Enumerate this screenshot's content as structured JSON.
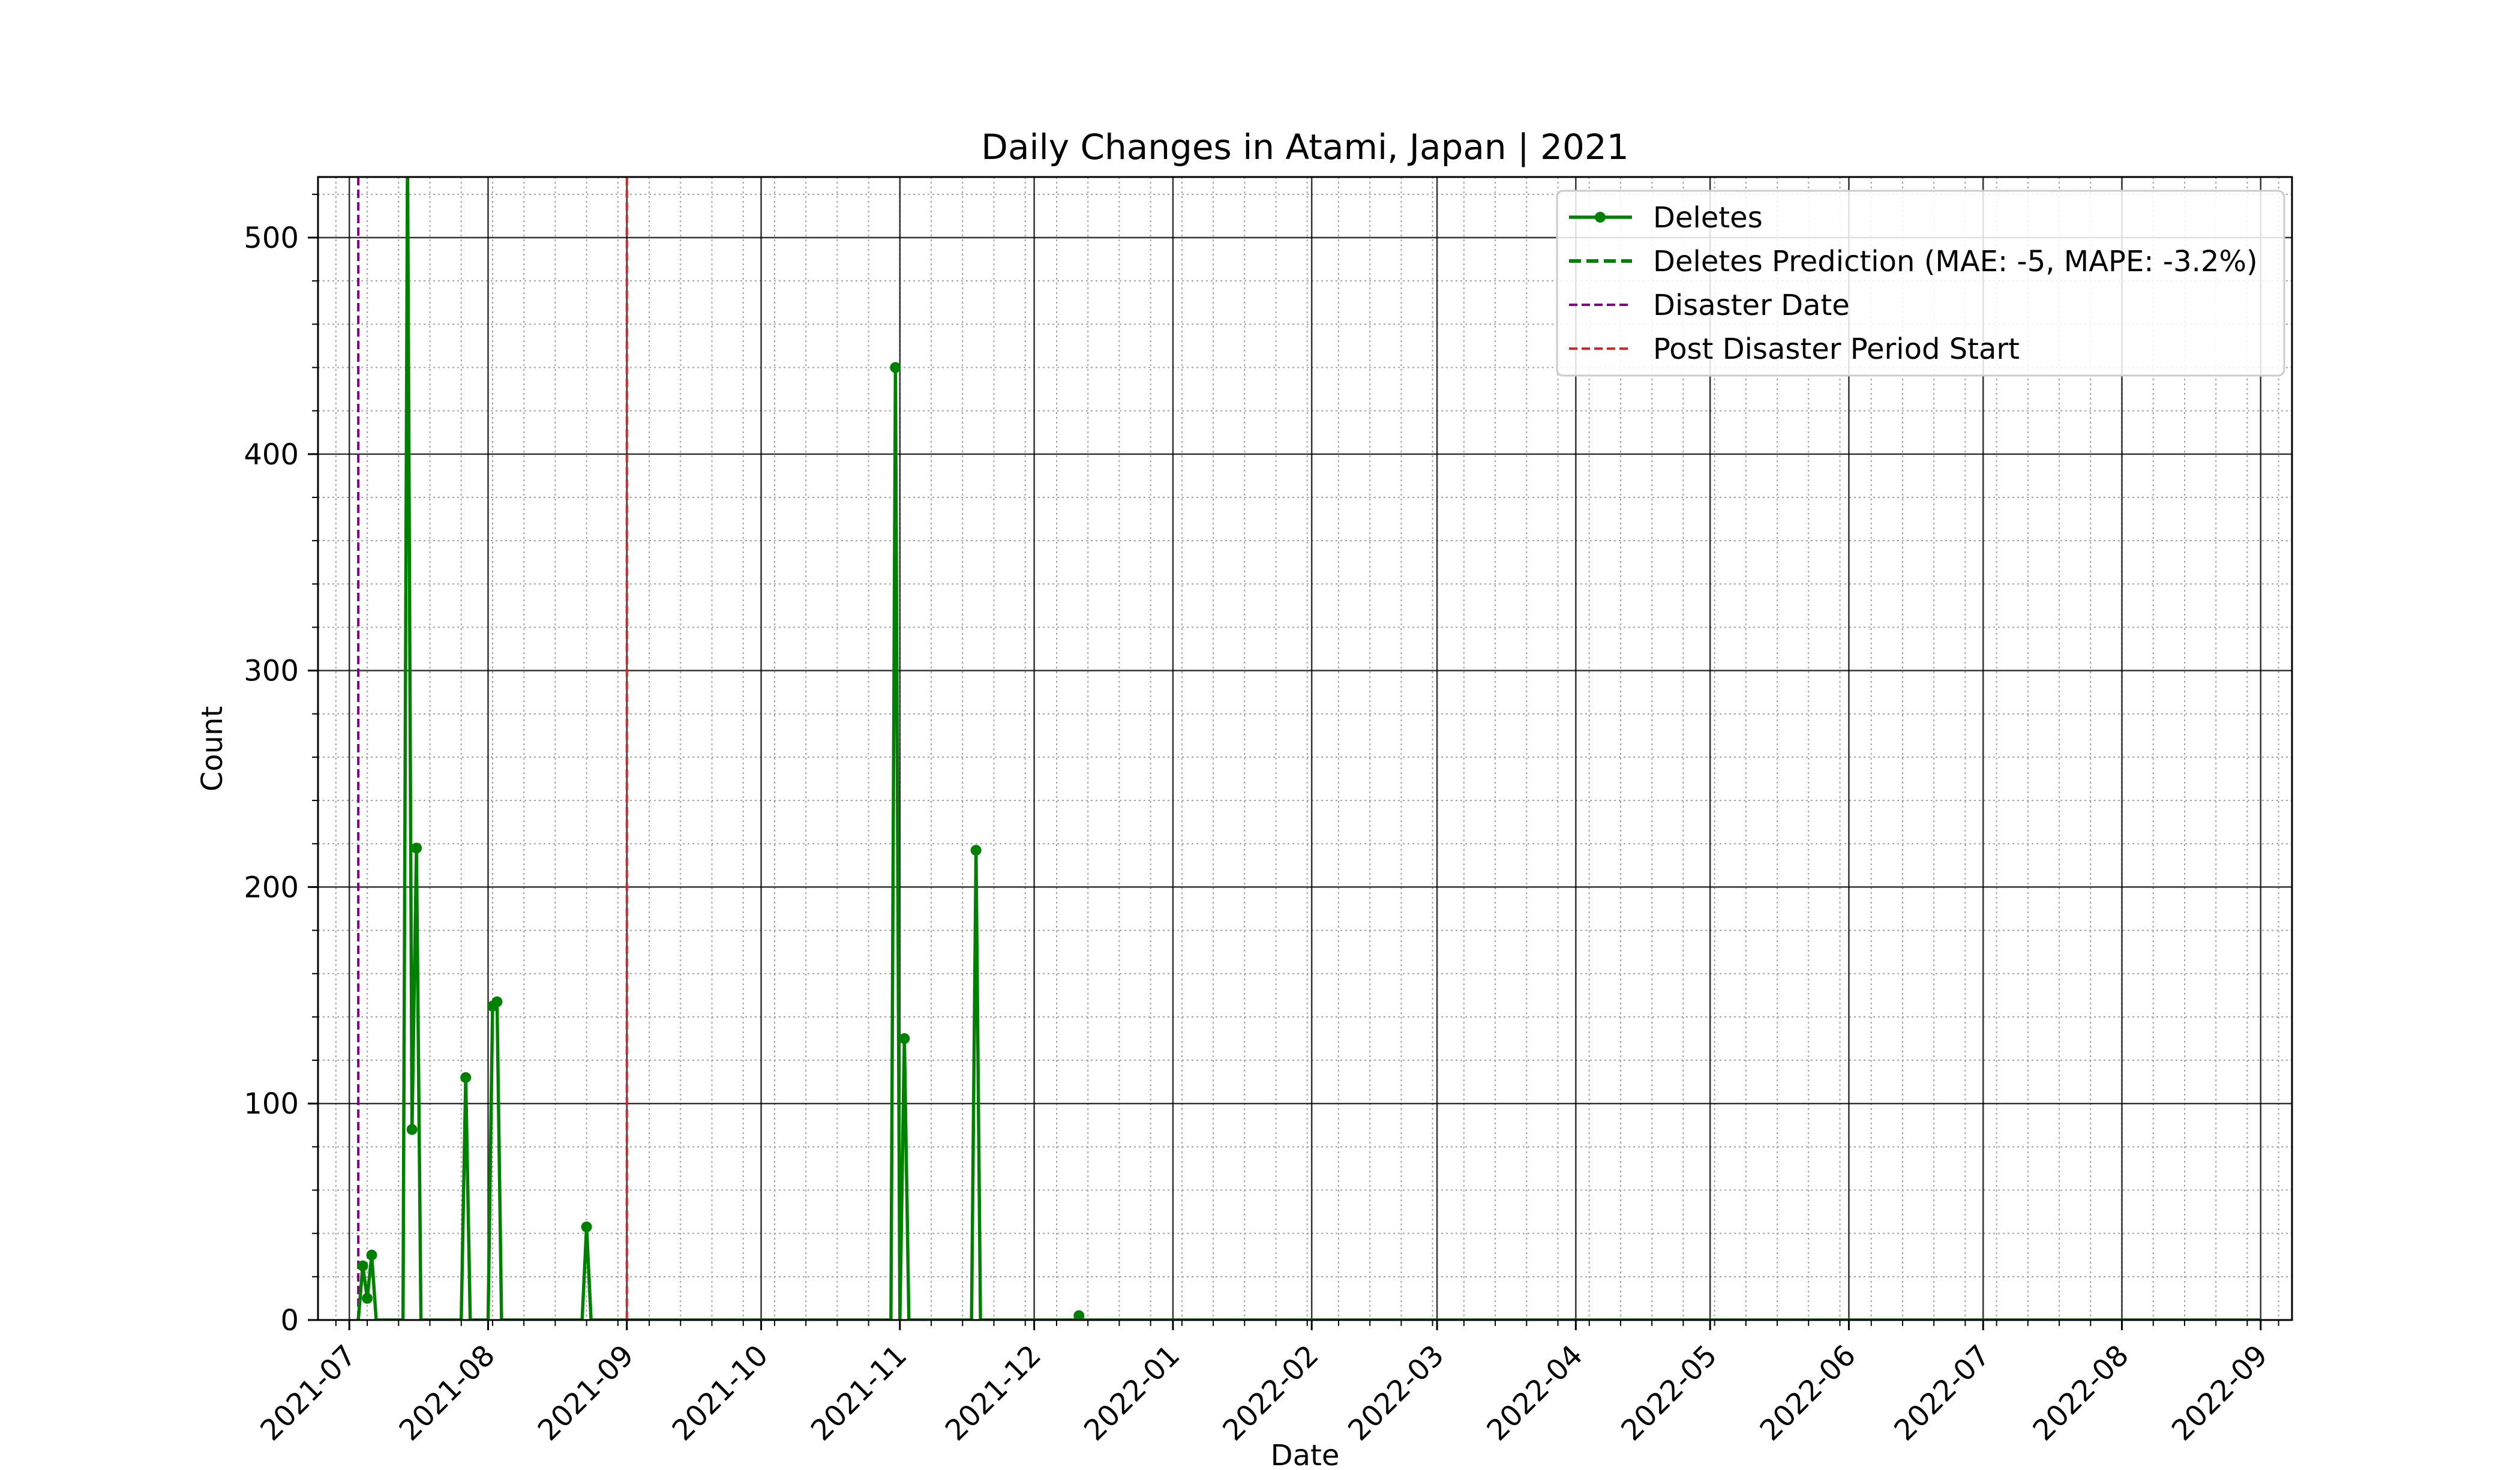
{
  "chart_data": {
    "type": "line",
    "title": "Daily Changes in Atami, Japan | 2021",
    "xlabel": "Date",
    "ylabel": "Count",
    "x_range": [
      "2021-06-24",
      "2022-09-08"
    ],
    "ylim": [
      0,
      528
    ],
    "y_ticks": [
      0,
      100,
      200,
      300,
      400,
      500
    ],
    "x_tick_labels": [
      "2021-07",
      "2021-08",
      "2021-09",
      "2021-10",
      "2021-11",
      "2021-12",
      "2022-01",
      "2022-02",
      "2022-03",
      "2022-04",
      "2022-05",
      "2022-06",
      "2022-07",
      "2022-08",
      "2022-09"
    ],
    "x_tick_dates": [
      "2021-07-01",
      "2021-08-01",
      "2021-09-01",
      "2021-10-01",
      "2021-11-01",
      "2021-12-01",
      "2022-01-01",
      "2022-02-01",
      "2022-03-01",
      "2022-04-01",
      "2022-05-01",
      "2022-06-01",
      "2022-07-01",
      "2022-08-01",
      "2022-09-01"
    ],
    "grid": true,
    "legend_position": "top-right",
    "series": [
      {
        "name": "Deletes",
        "color": "#008000",
        "style": "solid-with-markers",
        "points": [
          [
            "2021-07-03",
            0
          ],
          [
            "2021-07-04",
            25
          ],
          [
            "2021-07-05",
            10
          ],
          [
            "2021-07-06",
            30
          ],
          [
            "2021-07-07",
            0
          ],
          [
            "2021-07-13",
            0
          ],
          [
            "2021-07-14",
            540
          ],
          [
            "2021-07-15",
            88
          ],
          [
            "2021-07-16",
            218
          ],
          [
            "2021-07-17",
            0
          ],
          [
            "2021-07-26",
            0
          ],
          [
            "2021-07-27",
            112
          ],
          [
            "2021-07-28",
            0
          ],
          [
            "2021-08-01",
            0
          ],
          [
            "2021-08-02",
            145
          ],
          [
            "2021-08-03",
            147
          ],
          [
            "2021-08-04",
            0
          ],
          [
            "2021-08-22",
            0
          ],
          [
            "2021-08-23",
            43
          ],
          [
            "2021-08-24",
            0
          ],
          [
            "2021-10-30",
            0
          ],
          [
            "2021-10-31",
            440
          ],
          [
            "2021-11-01",
            0
          ],
          [
            "2021-11-02",
            130
          ],
          [
            "2021-11-03",
            0
          ],
          [
            "2021-11-17",
            0
          ],
          [
            "2021-11-18",
            217
          ],
          [
            "2021-11-19",
            0
          ],
          [
            "2021-12-10",
            0
          ],
          [
            "2021-12-11",
            2
          ],
          [
            "2021-12-12",
            0
          ],
          [
            "2022-09-01",
            0
          ]
        ]
      }
    ],
    "markers": [
      {
        "name": "Disaster Date",
        "date": "2021-07-03",
        "color": "#800080"
      },
      {
        "name": "Post Disaster Period Start",
        "date": "2021-09-01",
        "color": "#d62728"
      }
    ],
    "legend": [
      {
        "label": "Deletes",
        "color": "#008000",
        "style": "line-marker"
      },
      {
        "label": "Deletes Prediction (MAE: -5, MAPE: -3.2%)",
        "color": "#008000",
        "style": "dashed"
      },
      {
        "label": "Disaster Date",
        "color": "#800080",
        "style": "dashed-thin"
      },
      {
        "label": "Post Disaster Period Start",
        "color": "#d62728",
        "style": "dashed-thin"
      }
    ]
  }
}
